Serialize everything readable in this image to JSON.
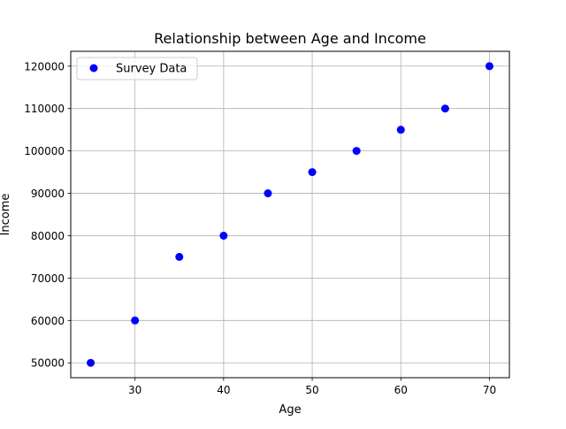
{
  "chart_data": {
    "type": "scatter",
    "title": "Relationship between Age and Income",
    "xlabel": "Age",
    "ylabel": "Income",
    "xlim": [
      22.75,
      72.25
    ],
    "ylim": [
      46500,
      123500
    ],
    "xticks": [
      30,
      40,
      50,
      60,
      70
    ],
    "yticks": [
      50000,
      60000,
      70000,
      80000,
      90000,
      100000,
      110000,
      120000
    ],
    "grid": true,
    "legend": "upper-left",
    "series": [
      {
        "name": "Survey Data",
        "color": "#0000ff",
        "points": [
          {
            "x": 25,
            "y": 50000
          },
          {
            "x": 30,
            "y": 60000
          },
          {
            "x": 35,
            "y": 75000
          },
          {
            "x": 40,
            "y": 80000
          },
          {
            "x": 45,
            "y": 90000
          },
          {
            "x": 50,
            "y": 95000
          },
          {
            "x": 55,
            "y": 100000
          },
          {
            "x": 60,
            "y": 105000
          },
          {
            "x": 65,
            "y": 110000
          },
          {
            "x": 70,
            "y": 120000
          }
        ]
      }
    ]
  }
}
